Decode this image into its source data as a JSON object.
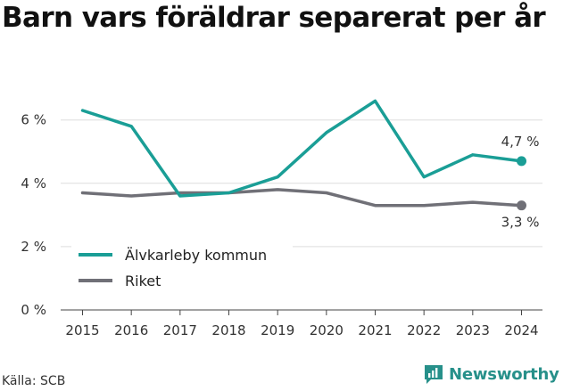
{
  "title": "Barn vars föräldrar separerat per år",
  "source": "Källa: SCB",
  "brand": "Newsworthy",
  "colors": {
    "kommun": "#1a9e96",
    "riket": "#707077",
    "brand": "#27908a",
    "grid": "#dddddd"
  },
  "chart_data": {
    "type": "line",
    "x": [
      2015,
      2016,
      2017,
      2018,
      2019,
      2020,
      2021,
      2022,
      2023,
      2024
    ],
    "series": [
      {
        "name": "Älvkarleby kommun",
        "values": [
          6.3,
          5.8,
          3.6,
          3.7,
          4.2,
          5.6,
          6.6,
          4.2,
          4.9,
          4.7
        ],
        "end_label": "4,7 %"
      },
      {
        "name": "Riket",
        "values": [
          3.7,
          3.6,
          3.7,
          3.7,
          3.8,
          3.7,
          3.3,
          3.3,
          3.4,
          3.3
        ],
        "end_label": "3,3 %"
      }
    ],
    "yticks": [
      0,
      2,
      4,
      6
    ],
    "ytick_labels": [
      "0 %",
      "2 %",
      "4 %",
      "6 %"
    ],
    "ylim": [
      0,
      7.5
    ],
    "grid": true,
    "legend": "bottom-left"
  }
}
